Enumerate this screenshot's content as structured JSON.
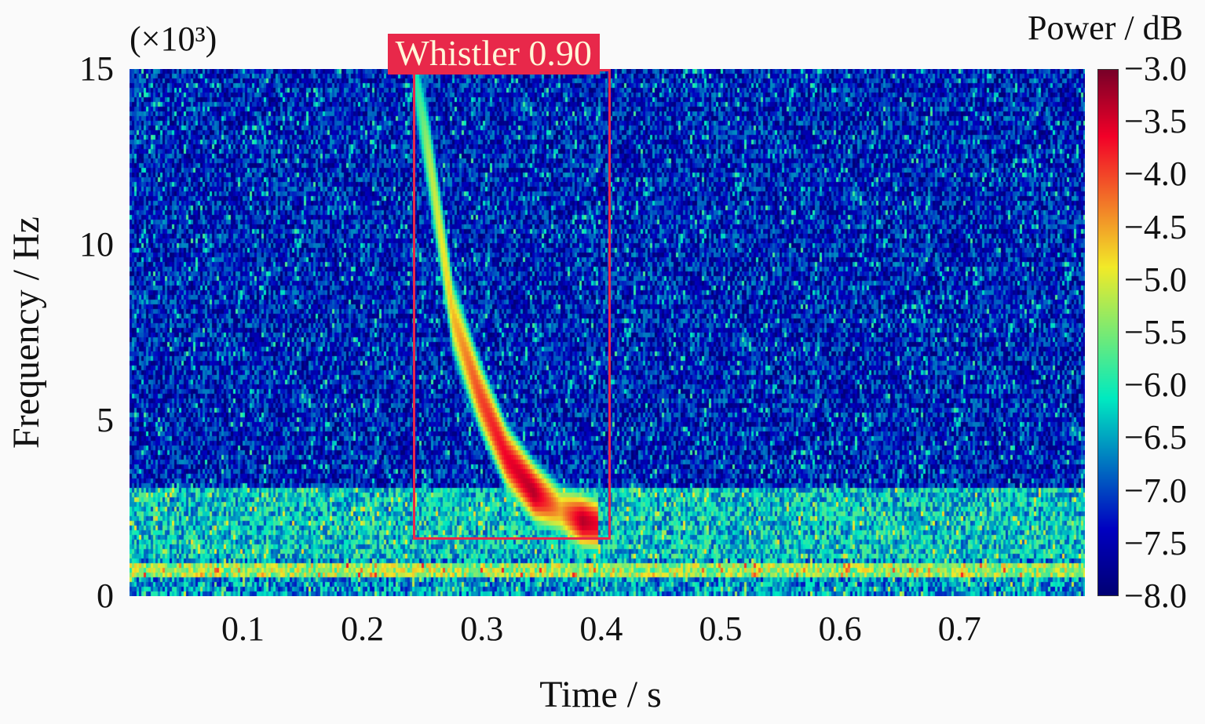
{
  "chart_data": {
    "type": "heatmap",
    "subtype": "spectrogram",
    "xlabel": "Time / s",
    "ylabel": "Frequency / Hz",
    "y_multiplier_label": "(×10³)",
    "xlim": [
      0.005,
      0.805
    ],
    "ylim": [
      0,
      15
    ],
    "x_ticks": [
      "0.1",
      "0.2",
      "0.3",
      "0.4",
      "0.5",
      "0.6",
      "0.7"
    ],
    "x_tick_values": [
      0.1,
      0.2,
      0.3,
      0.4,
      0.5,
      0.6,
      0.7
    ],
    "y_ticks": [
      "0",
      "5",
      "10",
      "15"
    ],
    "y_tick_values": [
      0,
      5,
      10,
      15
    ],
    "colorbar": {
      "label": "Power / dB",
      "colormap": "jet",
      "range": [
        -8.0,
        -3.0
      ],
      "ticks": [
        "−3.0",
        "−3.5",
        "−4.0",
        "−4.5",
        "−5.0",
        "−5.5",
        "−6.0",
        "−6.5",
        "−7.0",
        "−7.5",
        "−8.0"
      ],
      "tick_values": [
        -3.0,
        -3.5,
        -4.0,
        -4.5,
        -5.0,
        -5.5,
        -6.0,
        -6.5,
        -7.0,
        -7.5,
        -8.0
      ]
    },
    "background_power_db": {
      "above_3kHz": -7.3,
      "below_3kHz": -6.3,
      "band_near_0.8kHz": -5.3
    },
    "whistler_trace": [
      {
        "t": 0.243,
        "f": 14.8,
        "db": -6.0
      },
      {
        "t": 0.255,
        "f": 12.5,
        "db": -5.2
      },
      {
        "t": 0.275,
        "f": 8.0,
        "db": -4.6
      },
      {
        "t": 0.297,
        "f": 5.8,
        "db": -4.0
      },
      {
        "t": 0.32,
        "f": 4.0,
        "db": -3.6
      },
      {
        "t": 0.343,
        "f": 3.0,
        "db": -3.3
      },
      {
        "t": 0.365,
        "f": 2.5,
        "db": -4.5
      },
      {
        "t": 0.383,
        "f": 2.2,
        "db": -3.3
      },
      {
        "t": 0.396,
        "f": 2.1,
        "db": -3.6
      }
    ],
    "detection": {
      "label": "Whistler 0.90",
      "class": "Whistler",
      "score": 0.9,
      "t_range": [
        0.242,
        0.408
      ],
      "f_range": [
        1.6,
        15
      ],
      "color": "#e8284a"
    }
  }
}
